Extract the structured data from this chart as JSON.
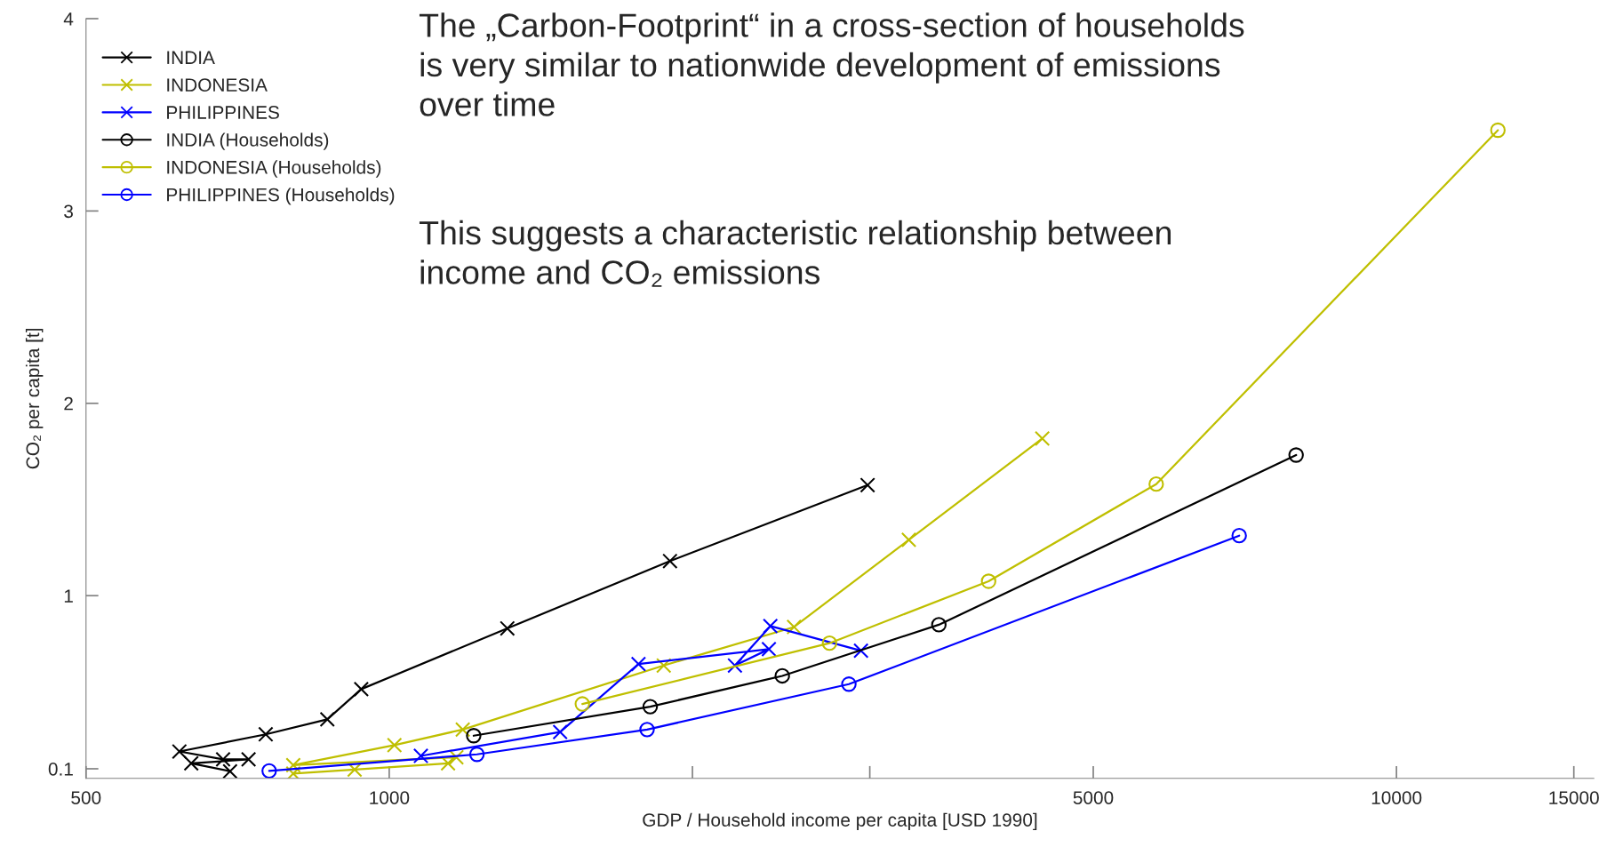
{
  "chart_data": {
    "type": "line",
    "xlabel": "GDP / Household income per capita [USD 1990]",
    "ylabel": "CO₂ per capita [t]",
    "log": "x",
    "grid": false,
    "legend": "top left",
    "xlim": [
      500,
      15700
    ],
    "xticks": [
      500,
      1000,
      {
        "value": 2000,
        "label": null
      },
      {
        "value": 3000,
        "label": null
      },
      5000,
      10000,
      15000
    ],
    "ylim": [
      0.05,
      4
    ],
    "yticks": [
      0.1,
      1,
      2,
      3,
      4
    ],
    "annotations": [
      "The „Carbon-Footprint“ in a cross-section of households\nis very similar to nationwide development of emissions\nover time",
      "This suggests a characteristic relationship between\nincome and CO₂ emissions"
    ],
    "series": [
      {
        "name": "INDIA",
        "color": "#000000",
        "marker": "cross",
        "x": [
          695,
          636,
          725,
          684,
          619,
          754,
          868,
          938,
          1310,
          1900,
          2985
        ],
        "values": [
          0.087,
          0.128,
          0.149,
          0.149,
          0.19,
          0.279,
          0.357,
          0.514,
          0.83,
          1.18,
          1.575
        ]
      },
      {
        "name": "INDONESIA",
        "color": "#bfbf00",
        "marker": "cross",
        "x": [
          803,
          924,
          1144,
          1166,
          803,
          1012,
          1183,
          1873,
          2523,
          3280,
          4450
        ],
        "values": [
          0.075,
          0.096,
          0.128,
          0.16,
          0.119,
          0.223,
          0.304,
          0.637,
          0.837,
          1.29,
          1.817
        ]
      },
      {
        "name": "PHILIPPINES",
        "color": "#0000ff",
        "marker": "cross",
        "x": [
          1075,
          1478,
          1768,
          2382,
          2204,
          2390,
          2940
        ],
        "values": [
          0.167,
          0.291,
          0.645,
          0.722,
          0.637,
          0.842,
          0.714
        ]
      },
      {
        "name": "INDIA (Households)",
        "color": "#000000",
        "marker": "circle",
        "x": [
          1213,
          1816,
          2456,
          3513,
          7950
        ],
        "values": [
          0.272,
          0.423,
          0.583,
          0.849,
          1.731
        ]
      },
      {
        "name": "INDONESIA (Households)",
        "color": "#bfbf00",
        "marker": "circle",
        "x": [
          1555,
          2736,
          3936,
          5774,
          12610
        ],
        "values": [
          0.437,
          0.753,
          1.075,
          1.58,
          3.42
        ]
      },
      {
        "name": "PHILIPPINES (Households)",
        "color": "#0000ff",
        "marker": "circle",
        "x": [
          760,
          1222,
          1803,
          2860,
          6980
        ],
        "values": [
          0.089,
          0.175,
          0.304,
          0.54,
          1.312
        ]
      }
    ]
  }
}
